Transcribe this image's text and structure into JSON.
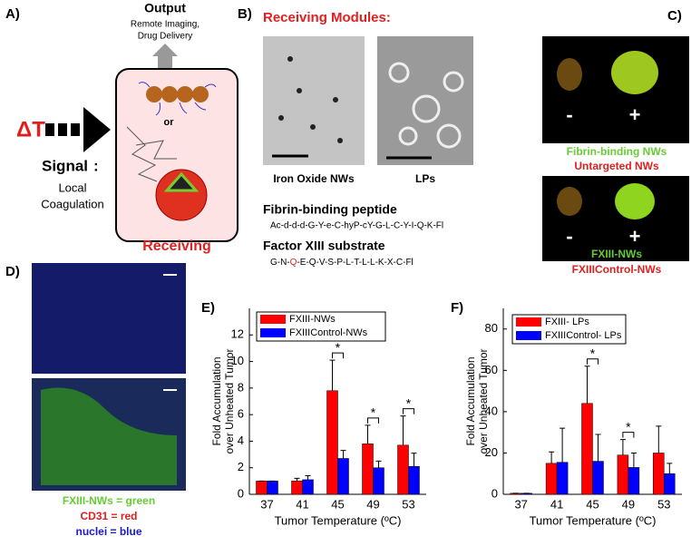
{
  "panel_a": {
    "label": "A)",
    "output_title": "Output",
    "output_lines": [
      "Remote Imaging,",
      "Drug Delivery"
    ],
    "delta_t": "ΔT",
    "signal": "Signal",
    "signal_colon": ":",
    "signal_lines": [
      "Local",
      "Coagulation"
    ],
    "or": "or",
    "receiving": "Receiving"
  },
  "panel_b": {
    "label": "B)",
    "title": "Receiving Modules:",
    "image_captions": [
      "Iron Oxide NWs",
      "LPs"
    ],
    "peptide_1_title": "Fibrin-binding peptide",
    "peptide_1_sequence": "Ac-d-d-d-G-Y-e-C-hyP-cY-G-L-C-Y-I-Q-K-Fl",
    "peptide_2_title": "Factor XIII substrate",
    "peptide_2_sequence": [
      "G-N-",
      "Q",
      "-E-Q-V-S-P-L-T-L-L-K-X-C-Fl"
    ]
  },
  "panel_c": {
    "label": "C)",
    "images": [
      {
        "minus": "-",
        "plus": "+",
        "caption_1": "Fibrin-binding NWs",
        "caption_2": "Untargeted NWs"
      },
      {
        "minus": "-",
        "plus": "+",
        "caption_1": "FXIII-NWs",
        "caption_2": "FXIIIControl-NWs"
      }
    ]
  },
  "panel_d": {
    "label": "D)",
    "legend": [
      "FXIII-NWs = green",
      "CD31 = red",
      "nuclei = blue"
    ]
  },
  "chart_data": [
    {
      "type": "bar",
      "panel_label": "E)",
      "y_label": [
        "Fold Accumulation",
        "over Unheated Tumor"
      ],
      "x_label": "Tumor Temperature (ºC)",
      "categories": [
        "37",
        "41",
        "45",
        "49",
        "53"
      ],
      "series": [
        {
          "name": "FXIII-NWs",
          "color": "#ff0000",
          "values": [
            1,
            1,
            7.8,
            3.8,
            3.7
          ],
          "errors": [
            0,
            0.2,
            2.3,
            1.4,
            2.2
          ]
        },
        {
          "name": "FXIIIControl-NWs",
          "color": "#0000ff",
          "values": [
            1,
            1.1,
            2.7,
            2.0,
            2.1
          ],
          "errors": [
            0,
            0.3,
            0.6,
            0.5,
            1.0
          ]
        }
      ],
      "significant": [
        false,
        false,
        true,
        true,
        true
      ],
      "significance_label": "*",
      "ylim": [
        0,
        14
      ],
      "yticks": [
        0,
        2,
        4,
        6,
        8,
        10,
        12
      ]
    },
    {
      "type": "bar",
      "panel_label": "F)",
      "y_label": [
        "Fold Accumulation",
        "over Unheated Tumor"
      ],
      "x_label": "Tumor Temperature (ºC)",
      "categories": [
        "37",
        "41",
        "45",
        "49",
        "53"
      ],
      "series": [
        {
          "name": "FXIII- LPs",
          "color": "#ff0000",
          "values": [
            0.5,
            15,
            44,
            19,
            20
          ],
          "errors": [
            0,
            5.5,
            18,
            7.5,
            13
          ]
        },
        {
          "name": "FXIIIControl- LPs",
          "color": "#0000ff",
          "values": [
            0.5,
            15.5,
            16,
            13,
            10
          ],
          "errors": [
            0,
            16.5,
            13,
            7,
            5
          ]
        }
      ],
      "significant": [
        false,
        false,
        true,
        true,
        false
      ],
      "significance_label": "*",
      "ylim": [
        0,
        90
      ],
      "yticks": [
        0,
        20,
        40,
        60,
        80
      ]
    }
  ]
}
